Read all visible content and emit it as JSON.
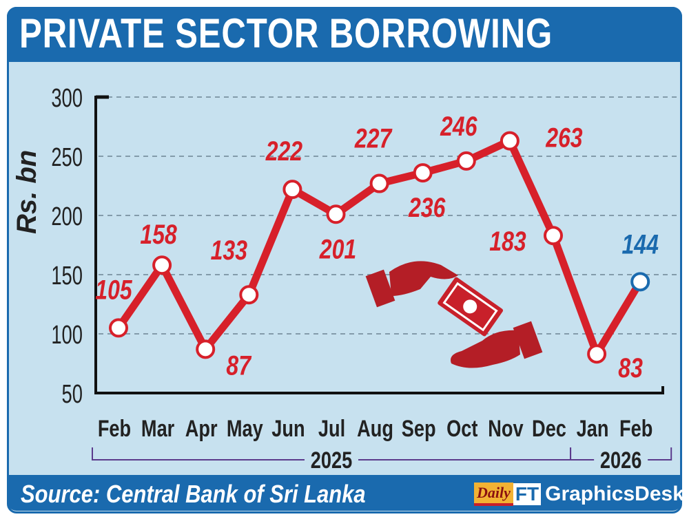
{
  "title": "PRIVATE SECTOR BORROWING",
  "source": "Source: Central Bank of Sri Lanka",
  "logo": {
    "daily": "Daily",
    "ft": "FT",
    "desk": "GraphicsDesk"
  },
  "colors": {
    "line": "#d7202a",
    "highlight": "#1a6aae",
    "panel": "#c7e1ef",
    "bracket": "#5b3a8c"
  },
  "chart_data": {
    "type": "line",
    "title": "PRIVATE SECTOR BORROWING",
    "ylabel": "Rs.  bn",
    "xlabel": "",
    "ylim": [
      50,
      300
    ],
    "yticks": [
      50,
      100,
      150,
      200,
      250,
      300
    ],
    "grid": true,
    "categories": [
      "Feb",
      "Mar",
      "Apr",
      "May",
      "Jun",
      "Jul",
      "Aug",
      "Sep",
      "Oct",
      "Nov",
      "Dec",
      "Jan",
      "Feb"
    ],
    "years": [
      {
        "label": "2025",
        "from": 0,
        "to": 10
      },
      {
        "label": "2026",
        "from": 11,
        "to": 12
      }
    ],
    "series": [
      {
        "name": "Private sector borrowing",
        "values": [
          105,
          158,
          87,
          133,
          222,
          201,
          227,
          236,
          246,
          263,
          183,
          83,
          144
        ]
      }
    ],
    "highlight_index": 12
  }
}
